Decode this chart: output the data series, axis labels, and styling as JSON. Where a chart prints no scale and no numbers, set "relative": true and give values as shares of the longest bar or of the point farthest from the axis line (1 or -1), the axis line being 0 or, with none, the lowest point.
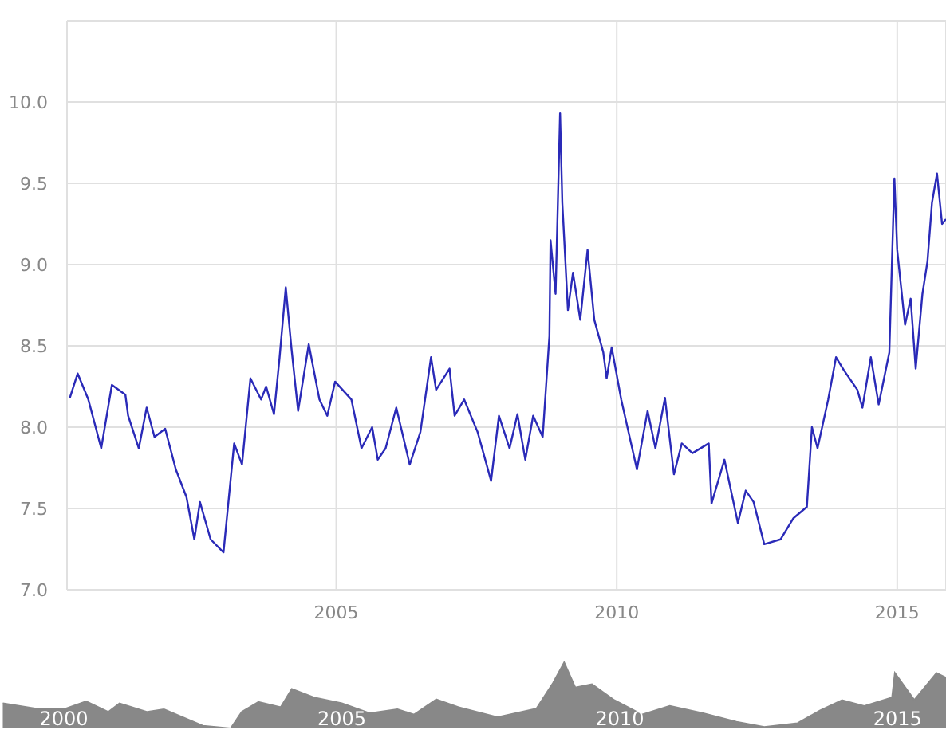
{
  "chart_data": [
    {
      "type": "line",
      "color": "#2a2ab8",
      "grid": true,
      "xlim": [
        2000.2,
        2015.87
      ],
      "xticks": [
        2005,
        2010,
        2015
      ],
      "ylim": [
        7.0,
        10.5
      ],
      "yticks": [
        {
          "value": 7,
          "label": "7.0"
        },
        {
          "value": 7.5,
          "label": "7.5"
        },
        {
          "value": 8,
          "label": "8.0"
        },
        {
          "value": 8.5,
          "label": "8.5"
        },
        {
          "value": 9,
          "label": "9.0"
        },
        {
          "value": 9.5,
          "label": "9.5"
        },
        {
          "value": 10,
          "label": "10.0"
        }
      ],
      "x": [
        2000.25,
        2000.39,
        2000.58,
        2000.81,
        2001.0,
        2001.24,
        2001.29,
        2001.48,
        2001.62,
        2001.76,
        2001.95,
        2002.14,
        2002.33,
        2002.47,
        2002.57,
        2002.76,
        2002.99,
        2003.18,
        2003.32,
        2003.47,
        2003.66,
        2003.75,
        2003.89,
        2003.99,
        2004.1,
        2004.2,
        2004.32,
        2004.51,
        2004.7,
        2004.84,
        2004.98,
        2005.27,
        2005.45,
        2005.64,
        2005.74,
        2005.88,
        2006.07,
        2006.31,
        2006.5,
        2006.69,
        2006.78,
        2007.02,
        2007.11,
        2007.28,
        2007.52,
        2007.76,
        2007.9,
        2008.09,
        2008.23,
        2008.37,
        2008.51,
        2008.68,
        2008.8,
        2008.82,
        2008.91,
        2008.99,
        2009.03,
        2009.13,
        2009.22,
        2009.35,
        2009.48,
        2009.6,
        2009.76,
        2009.82,
        2009.91,
        2010.08,
        2010.36,
        2010.55,
        2010.69,
        2010.86,
        2011.02,
        2011.16,
        2011.35,
        2011.64,
        2011.69,
        2011.92,
        2012.16,
        2012.3,
        2012.44,
        2012.63,
        2012.92,
        2013.15,
        2013.39,
        2013.48,
        2013.58,
        2013.77,
        2013.91,
        2014.05,
        2014.29,
        2014.38,
        2014.53,
        2014.67,
        2014.86,
        2014.95,
        2015.0,
        2015.14,
        2015.24,
        2015.33,
        2015.45,
        2015.54,
        2015.62,
        2015.71,
        2015.8,
        2015.87
      ],
      "values": [
        8.18,
        8.33,
        8.17,
        7.87,
        8.26,
        8.2,
        8.07,
        7.87,
        8.12,
        7.94,
        7.99,
        7.74,
        7.57,
        7.31,
        7.54,
        7.31,
        7.23,
        7.9,
        7.77,
        8.3,
        8.17,
        8.25,
        8.08,
        8.43,
        8.86,
        8.49,
        8.1,
        8.51,
        8.17,
        8.07,
        8.28,
        8.17,
        7.87,
        8.0,
        7.8,
        7.87,
        8.12,
        7.77,
        7.97,
        8.43,
        8.23,
        8.36,
        8.07,
        8.17,
        7.97,
        7.67,
        8.07,
        7.87,
        8.08,
        7.8,
        8.07,
        7.94,
        8.56,
        9.15,
        8.82,
        9.93,
        9.38,
        8.72,
        8.95,
        8.66,
        9.09,
        8.66,
        8.46,
        8.3,
        8.49,
        8.17,
        7.74,
        8.1,
        7.87,
        8.18,
        7.71,
        7.9,
        7.84,
        7.9,
        7.53,
        7.8,
        7.41,
        7.61,
        7.54,
        7.28,
        7.31,
        7.44,
        7.51,
        8.0,
        7.87,
        8.17,
        8.43,
        8.35,
        8.23,
        8.12,
        8.43,
        8.14,
        8.46,
        9.53,
        9.09,
        8.63,
        8.79,
        8.36,
        8.82,
        9.02,
        9.38,
        9.56,
        9.25,
        9.28
      ]
    },
    {
      "type": "area",
      "color": "#888888",
      "relative": true,
      "tick_labels": "x",
      "xlim": [
        1998.85,
        2015.87
      ],
      "xticks": [
        2000,
        2005,
        2010,
        2015
      ],
      "x": [
        1998.9,
        1999.5,
        2000.0,
        2000.4,
        2000.8,
        2001.0,
        2001.5,
        2001.8,
        2002.5,
        2003.0,
        2003.2,
        2003.5,
        2003.9,
        2004.1,
        2004.5,
        2005.0,
        2005.5,
        2006.0,
        2006.3,
        2006.7,
        2007.1,
        2007.8,
        2008.5,
        2008.8,
        2009.0,
        2009.2,
        2009.5,
        2009.9,
        2010.4,
        2010.9,
        2011.5,
        2012.1,
        2012.6,
        2013.2,
        2013.6,
        2014.0,
        2014.4,
        2014.9,
        2014.95,
        2015.3,
        2015.7,
        2015.87
      ],
      "values": [
        0.38,
        0.3,
        0.29,
        0.41,
        0.25,
        0.38,
        0.25,
        0.29,
        0.04,
        0,
        0.25,
        0.4,
        0.32,
        0.6,
        0.47,
        0.38,
        0.23,
        0.29,
        0.21,
        0.44,
        0.32,
        0.17,
        0.3,
        0.69,
        1,
        0.62,
        0.67,
        0.43,
        0.21,
        0.34,
        0.23,
        0.1,
        0.02,
        0.08,
        0.27,
        0.43,
        0.34,
        0.47,
        0.84,
        0.43,
        0.84,
        0.77
      ]
    }
  ]
}
